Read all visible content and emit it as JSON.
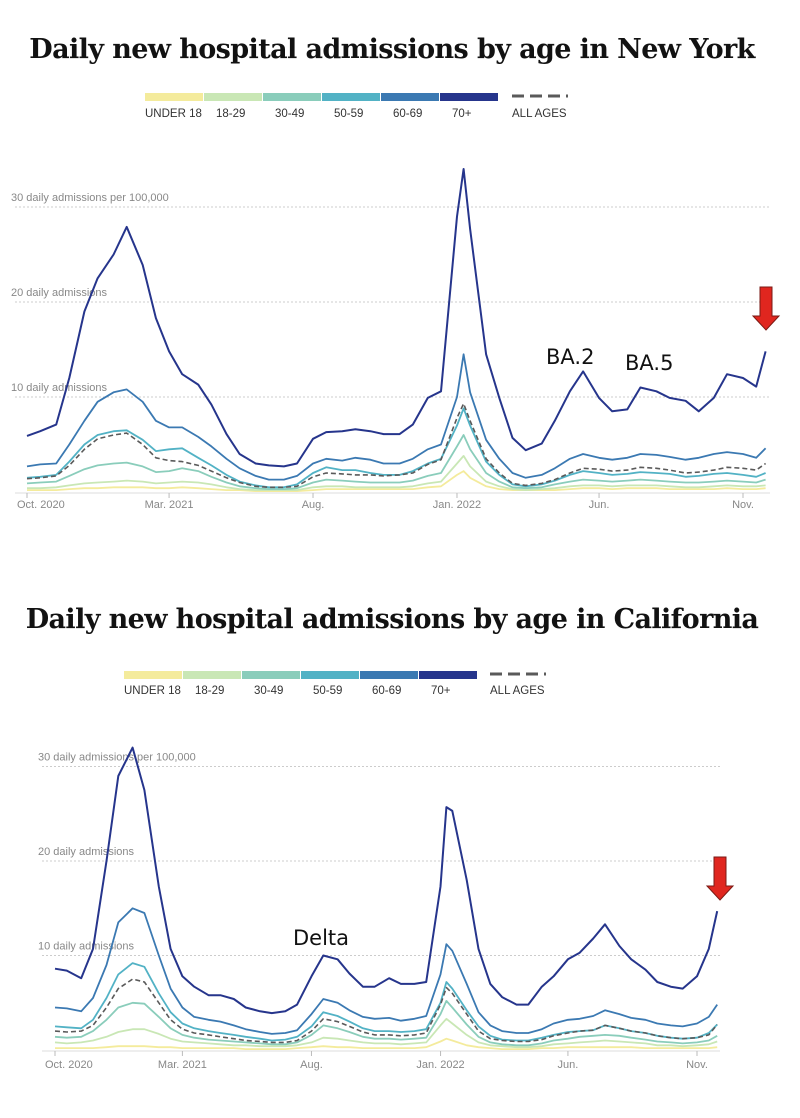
{
  "legend": {
    "colors": {
      "under18": "#f4eb9c",
      "18-29": "#c9e7b5",
      "30-49": "#8acdbb",
      "50-59": "#52b2c5",
      "60-69": "#3b79b2",
      "70+": "#26358c",
      "all": "#5a5a5a"
    }
  },
  "chart_data": [
    {
      "type": "line",
      "title": "Daily new hospital admissions by age in New York",
      "ylabel_ticks": [
        "10 daily admissions",
        "20 daily admissions",
        "30 daily admissions per 100,000"
      ],
      "yticks": [
        10,
        20,
        30
      ],
      "ylim": [
        0,
        35
      ],
      "xticks": [
        {
          "date": "2020-10-01",
          "label": "Oct. 2020"
        },
        {
          "date": "2021-03-01",
          "label": "Mar. 2021"
        },
        {
          "date": "2021-08-01",
          "label": "Aug."
        },
        {
          "date": "2022-01-01",
          "label": "Jan. 2022"
        },
        {
          "date": "2022-06-01",
          "label": "Jun."
        },
        {
          "date": "2022-11-01",
          "label": "Nov."
        }
      ],
      "grid": true,
      "legend_position": "top",
      "annotations": [
        {
          "text": "BA.2",
          "date": "2022-05-20"
        },
        {
          "text": "BA.5",
          "date": "2022-07-25"
        }
      ],
      "arrow": {
        "color": "#e0261f",
        "points_to": "latest value"
      },
      "x": [
        "2020-10-01",
        "2020-10-15",
        "2020-11-01",
        "2020-11-15",
        "2020-12-01",
        "2020-12-15",
        "2021-01-01",
        "2021-01-15",
        "2021-02-01",
        "2021-02-15",
        "2021-03-01",
        "2021-03-15",
        "2021-04-01",
        "2021-04-15",
        "2021-05-01",
        "2021-05-15",
        "2021-06-01",
        "2021-06-15",
        "2021-07-01",
        "2021-07-15",
        "2021-08-01",
        "2021-08-15",
        "2021-09-01",
        "2021-09-15",
        "2021-10-01",
        "2021-10-15",
        "2021-11-01",
        "2021-11-15",
        "2021-12-01",
        "2021-12-15",
        "2022-01-01",
        "2022-01-08",
        "2022-01-15",
        "2022-02-01",
        "2022-02-15",
        "2022-03-01",
        "2022-03-15",
        "2022-04-01",
        "2022-04-15",
        "2022-05-01",
        "2022-05-15",
        "2022-06-01",
        "2022-06-15",
        "2022-07-01",
        "2022-07-15",
        "2022-08-01",
        "2022-08-15",
        "2022-09-01",
        "2022-09-15",
        "2022-10-01",
        "2022-10-15",
        "2022-11-01",
        "2022-11-15",
        "2022-11-25"
      ],
      "series": [
        {
          "name": "UNDER 18",
          "key": "under18",
          "values": [
            0.2,
            0.2,
            0.2,
            0.3,
            0.4,
            0.4,
            0.5,
            0.5,
            0.5,
            0.4,
            0.4,
            0.5,
            0.4,
            0.3,
            0.2,
            0.2,
            0.1,
            0.1,
            0.1,
            0.1,
            0.2,
            0.3,
            0.3,
            0.3,
            0.3,
            0.3,
            0.3,
            0.3,
            0.5,
            0.6,
            1.8,
            2.2,
            1.5,
            0.6,
            0.3,
            0.2,
            0.2,
            0.2,
            0.2,
            0.3,
            0.4,
            0.4,
            0.3,
            0.4,
            0.4,
            0.4,
            0.3,
            0.3,
            0.3,
            0.3,
            0.4,
            0.3,
            0.3,
            0.4
          ]
        },
        {
          "name": "18-29",
          "key": "18-29",
          "values": [
            0.4,
            0.4,
            0.5,
            0.7,
            0.9,
            1.0,
            1.1,
            1.2,
            1.1,
            0.9,
            1.0,
            1.1,
            1.0,
            0.8,
            0.5,
            0.3,
            0.2,
            0.2,
            0.2,
            0.2,
            0.5,
            0.6,
            0.6,
            0.5,
            0.5,
            0.5,
            0.5,
            0.6,
            0.9,
            1.1,
            3.0,
            3.8,
            2.7,
            1.1,
            0.6,
            0.3,
            0.2,
            0.3,
            0.4,
            0.6,
            0.7,
            0.7,
            0.6,
            0.7,
            0.7,
            0.7,
            0.6,
            0.5,
            0.5,
            0.6,
            0.7,
            0.6,
            0.6,
            0.7
          ]
        },
        {
          "name": "30-49",
          "key": "30-49",
          "values": [
            0.9,
            1.0,
            1.1,
            1.7,
            2.4,
            2.8,
            3.0,
            3.1,
            2.7,
            2.1,
            2.2,
            2.5,
            2.2,
            1.6,
            1.0,
            0.6,
            0.4,
            0.3,
            0.3,
            0.4,
            1.0,
            1.3,
            1.2,
            1.1,
            1.0,
            1.0,
            1.0,
            1.2,
            1.7,
            2.0,
            4.8,
            6.0,
            4.5,
            2.0,
            1.1,
            0.5,
            0.4,
            0.5,
            0.8,
            1.1,
            1.3,
            1.2,
            1.1,
            1.2,
            1.3,
            1.2,
            1.1,
            1.0,
            1.0,
            1.1,
            1.2,
            1.1,
            1.0,
            1.3
          ]
        },
        {
          "name": "50-59",
          "key": "50-59",
          "values": [
            1.5,
            1.6,
            1.8,
            3.2,
            5.0,
            6.0,
            6.4,
            6.5,
            5.5,
            4.3,
            4.5,
            4.6,
            3.6,
            2.8,
            1.8,
            1.1,
            0.7,
            0.5,
            0.5,
            0.8,
            2.0,
            2.6,
            2.3,
            2.3,
            2.0,
            1.8,
            1.8,
            2.2,
            3.0,
            3.5,
            7.0,
            8.8,
            7.0,
            3.2,
            1.8,
            0.8,
            0.6,
            0.8,
            1.2,
            1.8,
            2.2,
            2.0,
            1.8,
            1.9,
            2.1,
            2.0,
            1.9,
            1.6,
            1.7,
            1.9,
            2.0,
            1.8,
            1.6,
            2.0
          ]
        },
        {
          "name": "60-69",
          "key": "60-69",
          "values": [
            2.7,
            2.9,
            3.0,
            5.0,
            7.5,
            9.5,
            10.5,
            10.8,
            9.5,
            7.5,
            6.8,
            6.8,
            5.8,
            4.8,
            3.5,
            2.5,
            1.7,
            1.3,
            1.3,
            1.7,
            3.0,
            3.5,
            3.3,
            3.6,
            3.4,
            3.0,
            3.0,
            3.5,
            4.5,
            5.0,
            10.0,
            14.5,
            10.5,
            5.5,
            3.5,
            2.0,
            1.5,
            1.8,
            2.5,
            3.5,
            4.0,
            3.6,
            3.4,
            3.6,
            4.0,
            3.9,
            3.7,
            3.4,
            3.6,
            4.0,
            4.2,
            4.0,
            3.6,
            4.6
          ]
        },
        {
          "name": "70+",
          "key": "70+",
          "values": [
            5.9,
            6.4,
            7.1,
            12,
            19,
            22.5,
            25,
            27.9,
            23.9,
            18.3,
            14.8,
            12.4,
            11.3,
            9.2,
            6.1,
            4.0,
            3.0,
            2.8,
            2.7,
            3.0,
            5.6,
            6.3,
            6.4,
            6.6,
            6.4,
            6.1,
            6.1,
            7.1,
            9.9,
            10.6,
            29,
            34,
            27.7,
            14.5,
            9.9,
            5.7,
            4.4,
            5.1,
            7.5,
            10.6,
            12.7,
            9.9,
            8.5,
            8.7,
            11,
            10.6,
            9.9,
            9.6,
            8.5,
            9.9,
            12.4,
            12,
            11.1,
            14.8
          ]
        },
        {
          "name": "ALL AGES",
          "key": "all",
          "dashed": true,
          "values": [
            1.4,
            1.5,
            1.7,
            2.8,
            4.5,
            5.6,
            6.0,
            6.2,
            5.0,
            3.6,
            3.3,
            3.2,
            2.8,
            2.2,
            1.5,
            1.0,
            0.6,
            0.5,
            0.5,
            0.6,
            1.6,
            2.0,
            1.9,
            1.8,
            1.8,
            1.7,
            1.8,
            2.0,
            2.9,
            3.4,
            7.8,
            9.3,
            7.5,
            3.5,
            2.0,
            0.9,
            0.7,
            0.9,
            1.3,
            2.0,
            2.5,
            2.4,
            2.2,
            2.3,
            2.6,
            2.5,
            2.3,
            2.0,
            2.1,
            2.3,
            2.6,
            2.5,
            2.3,
            3.0
          ]
        }
      ]
    },
    {
      "type": "line",
      "title": "Daily new hospital admissions by age in California",
      "ylabel_ticks": [
        "10 daily admissions",
        "20 daily admissions",
        "30 daily admissions per 100,000"
      ],
      "yticks": [
        10,
        20,
        30
      ],
      "ylim": [
        0,
        33
      ],
      "xticks": [
        {
          "date": "2020-10-01",
          "label": "Oct. 2020"
        },
        {
          "date": "2021-03-01",
          "label": "Mar. 2021"
        },
        {
          "date": "2021-08-01",
          "label": "Aug."
        },
        {
          "date": "2022-01-01",
          "label": "Jan. 2022"
        },
        {
          "date": "2022-06-01",
          "label": "Jun."
        },
        {
          "date": "2022-11-01",
          "label": "Nov."
        }
      ],
      "grid": true,
      "legend_position": "top",
      "annotations": [
        {
          "text": "Delta",
          "date": "2021-08-15"
        }
      ],
      "arrow": {
        "color": "#e0261f",
        "points_to": "latest value"
      },
      "x": [
        "2020-10-01",
        "2020-10-15",
        "2020-11-01",
        "2020-11-15",
        "2020-12-01",
        "2020-12-15",
        "2021-01-01",
        "2021-01-15",
        "2021-02-01",
        "2021-02-15",
        "2021-03-01",
        "2021-03-15",
        "2021-04-01",
        "2021-04-15",
        "2021-05-01",
        "2021-05-15",
        "2021-06-01",
        "2021-06-15",
        "2021-07-01",
        "2021-07-15",
        "2021-08-01",
        "2021-08-15",
        "2021-09-01",
        "2021-09-15",
        "2021-10-01",
        "2021-10-15",
        "2021-11-01",
        "2021-11-15",
        "2021-12-01",
        "2021-12-15",
        "2022-01-01",
        "2022-01-08",
        "2022-01-15",
        "2022-02-01",
        "2022-02-15",
        "2022-03-01",
        "2022-03-15",
        "2022-04-01",
        "2022-04-15",
        "2022-05-01",
        "2022-05-15",
        "2022-06-01",
        "2022-06-15",
        "2022-07-01",
        "2022-07-15",
        "2022-08-01",
        "2022-08-15",
        "2022-09-01",
        "2022-09-15",
        "2022-10-01",
        "2022-10-15",
        "2022-11-01",
        "2022-11-15",
        "2022-11-25"
      ],
      "series": [
        {
          "name": "UNDER 18",
          "key": "under18",
          "values": [
            0.2,
            0.2,
            0.2,
            0.2,
            0.3,
            0.4,
            0.4,
            0.4,
            0.3,
            0.3,
            0.2,
            0.2,
            0.2,
            0.2,
            0.2,
            0.1,
            0.1,
            0.1,
            0.1,
            0.2,
            0.3,
            0.4,
            0.3,
            0.3,
            0.2,
            0.2,
            0.2,
            0.2,
            0.2,
            0.3,
            0.9,
            1.2,
            1.0,
            0.5,
            0.3,
            0.2,
            0.1,
            0.1,
            0.1,
            0.2,
            0.2,
            0.3,
            0.3,
            0.3,
            0.3,
            0.3,
            0.3,
            0.2,
            0.2,
            0.2,
            0.2,
            0.2,
            0.2,
            0.3
          ]
        },
        {
          "name": "18-29",
          "key": "18-29",
          "values": [
            0.8,
            0.7,
            0.8,
            1.0,
            1.4,
            1.9,
            2.2,
            2.2,
            1.7,
            1.2,
            0.9,
            0.8,
            0.7,
            0.6,
            0.5,
            0.5,
            0.4,
            0.4,
            0.4,
            0.5,
            0.8,
            1.3,
            1.2,
            1.0,
            0.8,
            0.7,
            0.7,
            0.6,
            0.7,
            0.8,
            2.6,
            3.3,
            2.8,
            1.6,
            0.8,
            0.5,
            0.4,
            0.3,
            0.3,
            0.4,
            0.6,
            0.7,
            0.8,
            0.9,
            1.0,
            0.9,
            0.8,
            0.7,
            0.5,
            0.5,
            0.4,
            0.5,
            0.6,
            0.9
          ]
        },
        {
          "name": "30-49",
          "key": "30-49",
          "values": [
            1.4,
            1.3,
            1.4,
            2.0,
            3.2,
            4.5,
            5.0,
            4.9,
            3.5,
            2.3,
            1.6,
            1.3,
            1.1,
            1.0,
            0.9,
            0.8,
            0.7,
            0.6,
            0.6,
            0.8,
            1.6,
            2.6,
            2.3,
            1.9,
            1.4,
            1.2,
            1.2,
            1.1,
            1.2,
            1.3,
            3.8,
            5.2,
            4.5,
            2.7,
            1.4,
            0.8,
            0.6,
            0.5,
            0.5,
            0.7,
            1.0,
            1.2,
            1.4,
            1.5,
            1.6,
            1.5,
            1.3,
            1.1,
            0.9,
            0.8,
            0.7,
            0.8,
            1.0,
            1.5
          ]
        },
        {
          "name": "50-59",
          "key": "50-59",
          "values": [
            2.5,
            2.4,
            2.3,
            3.2,
            5.5,
            8.0,
            9.2,
            8.8,
            6.0,
            4.0,
            2.8,
            2.3,
            2.0,
            1.8,
            1.6,
            1.4,
            1.2,
            1.0,
            1.1,
            1.4,
            2.5,
            4.0,
            3.6,
            3.0,
            2.3,
            2.0,
            2.0,
            1.9,
            2.0,
            2.2,
            5.0,
            7.2,
            6.5,
            4.2,
            2.5,
            1.5,
            1.1,
            1.0,
            1.0,
            1.3,
            1.6,
            1.9,
            2.0,
            2.1,
            2.6,
            2.3,
            2.0,
            1.8,
            1.5,
            1.3,
            1.2,
            1.3,
            1.8,
            2.7
          ]
        },
        {
          "name": "60-69",
          "key": "60-69",
          "values": [
            4.5,
            4.4,
            4.1,
            5.5,
            9.0,
            13.5,
            15.0,
            14.5,
            10.0,
            6.5,
            4.5,
            3.5,
            3.2,
            3.0,
            2.6,
            2.2,
            1.9,
            1.7,
            1.8,
            2.1,
            3.8,
            5.4,
            5.0,
            4.2,
            3.5,
            3.3,
            3.4,
            3.1,
            3.3,
            3.6,
            8.0,
            11.2,
            10.5,
            7.0,
            4.0,
            2.6,
            2.0,
            1.8,
            1.8,
            2.2,
            2.8,
            3.2,
            3.3,
            3.6,
            4.2,
            3.8,
            3.4,
            3.2,
            2.8,
            2.6,
            2.5,
            2.8,
            3.5,
            4.8
          ]
        },
        {
          "name": "70+",
          "key": "70+",
          "values": [
            8.6,
            8.4,
            7.6,
            10.7,
            20,
            29,
            32,
            27.5,
            17.3,
            10.7,
            7.8,
            6.7,
            5.8,
            5.8,
            5.4,
            4.5,
            4.1,
            3.9,
            4.1,
            4.8,
            7.8,
            10,
            9.6,
            8.1,
            6.7,
            6.7,
            7.6,
            7.0,
            7.0,
            7.2,
            17.3,
            25.7,
            25.3,
            18,
            10.7,
            7.0,
            5.6,
            4.8,
            4.8,
            6.7,
            7.8,
            9.6,
            10.3,
            11.8,
            13.3,
            11,
            9.6,
            8.5,
            7.2,
            6.7,
            6.5,
            7.8,
            10.7,
            14.7
          ]
        },
        {
          "name": "ALL AGES",
          "key": "all",
          "dashed": true,
          "values": [
            2.0,
            1.9,
            2.0,
            2.6,
            4.5,
            6.5,
            7.5,
            7.2,
            5.0,
            3.2,
            2.2,
            1.8,
            1.6,
            1.4,
            1.2,
            1.0,
            0.9,
            0.8,
            0.8,
            1.0,
            2.0,
            3.3,
            3.0,
            2.5,
            1.9,
            1.6,
            1.6,
            1.5,
            1.6,
            1.8,
            4.8,
            6.6,
            6.0,
            3.8,
            2.0,
            1.2,
            1.0,
            0.9,
            0.9,
            1.1,
            1.5,
            1.8,
            2.0,
            2.1,
            2.6,
            2.3,
            2.0,
            1.8,
            1.5,
            1.3,
            1.2,
            1.3,
            1.6,
            2.7
          ]
        }
      ]
    }
  ]
}
